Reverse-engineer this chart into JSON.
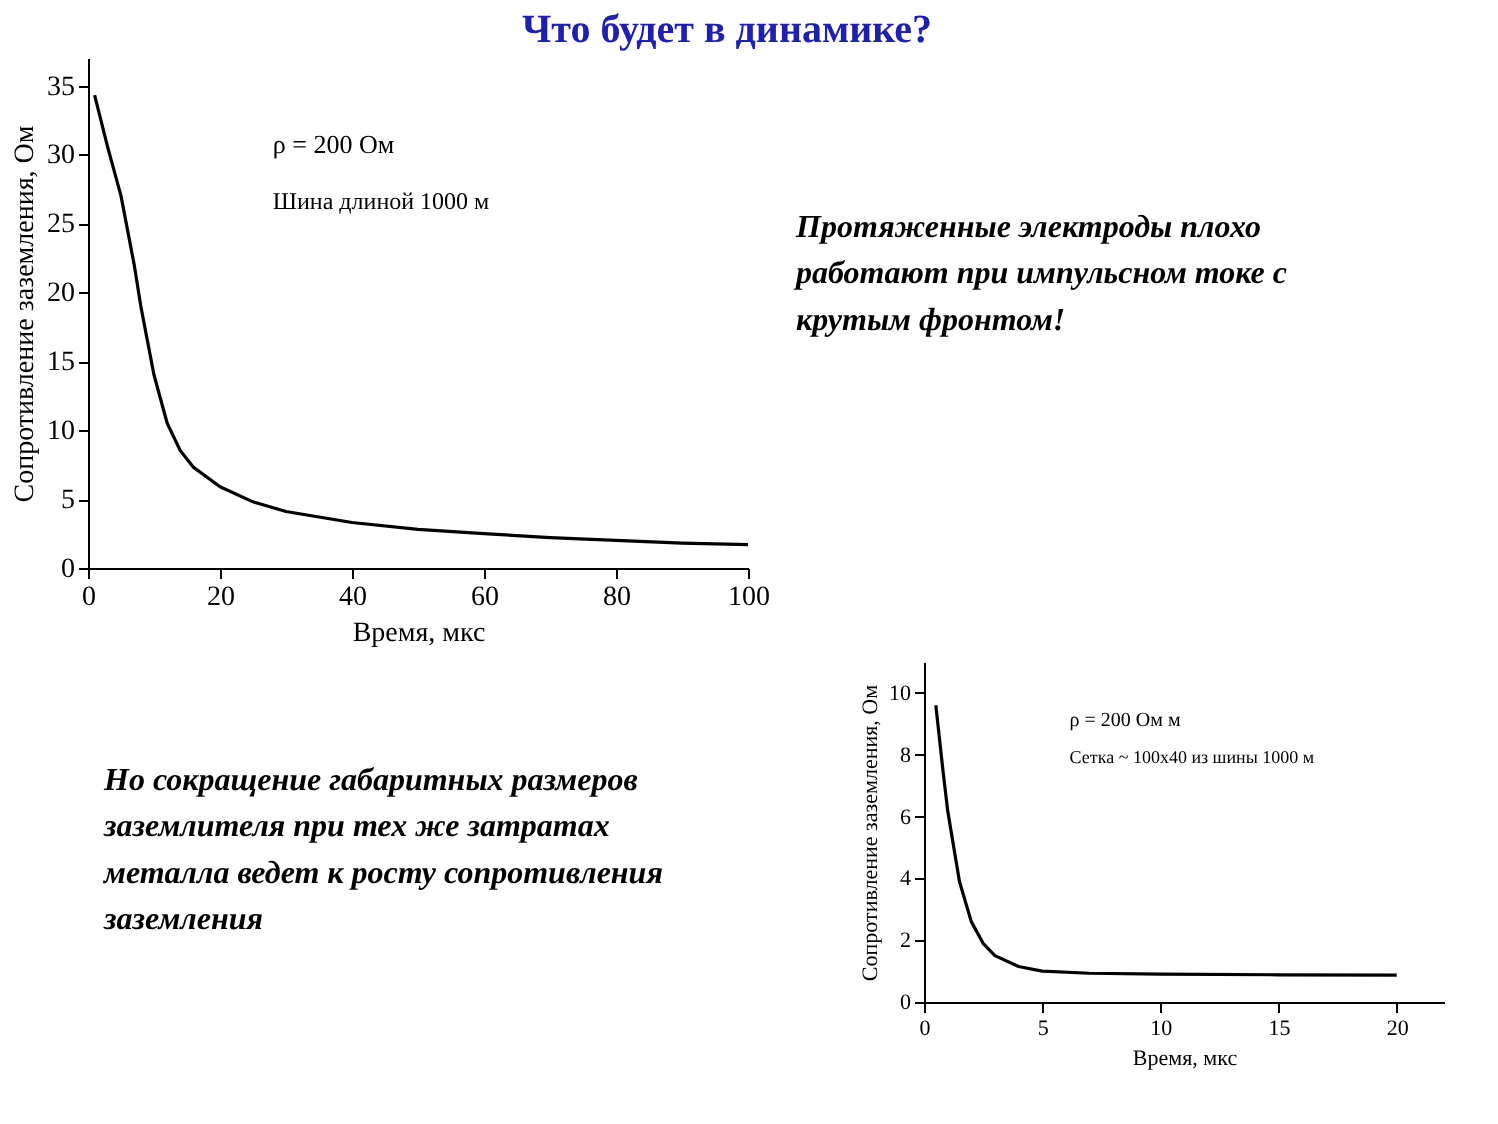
{
  "chart_data": [
    {
      "type": "line",
      "title": "Что будет в динамике?",
      "xlabel": "Время,  мкс",
      "ylabel": "Сопротивление заземления,  Ом",
      "xlim": [
        0,
        100
      ],
      "ylim": [
        0,
        37
      ],
      "xticks": [
        0,
        20,
        40,
        60,
        80,
        100
      ],
      "yticks": [
        0,
        5,
        10,
        15,
        20,
        25,
        30,
        35
      ],
      "grid": false,
      "annotations": [
        "ρ = 200 Ом",
        "Шина длиной 1000 м"
      ],
      "x": [
        1,
        3,
        5,
        7,
        8,
        10,
        12,
        14,
        16,
        20,
        25,
        30,
        40,
        50,
        60,
        70,
        80,
        90,
        100
      ],
      "series": [
        {
          "color": "#000000",
          "values": [
            34.3,
            30.5,
            27,
            22,
            19,
            14,
            10.5,
            8.5,
            7.3,
            5.9,
            4.8,
            4.1,
            3.3,
            2.8,
            2.5,
            2.2,
            2.0,
            1.8,
            1.7
          ]
        }
      ]
    },
    {
      "type": "other",
      "annotations": [
        "Протяженные электроды плохо работают при импульсном токе с крутым фронтом!"
      ]
    },
    {
      "type": "other",
      "annotations": [
        "Но сокращение габаритных размеров заземлителя при тех же затратах металла ведет к росту сопротивления заземления"
      ]
    },
    {
      "type": "line",
      "xlabel": "Время,  мкс",
      "ylabel": "Сопротивление заземления,  Ом",
      "xlim": [
        0,
        22
      ],
      "ylim": [
        0,
        11
      ],
      "xticks": [
        0,
        5,
        10,
        15,
        20
      ],
      "yticks": [
        0,
        2,
        4,
        6,
        8,
        10
      ],
      "grid": false,
      "annotations": [
        "ρ = 200 Ом м",
        "Сетка ~ 100х40 из шины 1000 м"
      ],
      "x": [
        0.5,
        0.8,
        1,
        1.5,
        2,
        2.5,
        3,
        4,
        5,
        7,
        10,
        15,
        20
      ],
      "series": [
        {
          "color": "#000000",
          "values": [
            9.6,
            7.5,
            6.2,
            3.9,
            2.6,
            1.9,
            1.5,
            1.15,
            1.0,
            0.93,
            0.9,
            0.88,
            0.87
          ]
        }
      ]
    }
  ]
}
